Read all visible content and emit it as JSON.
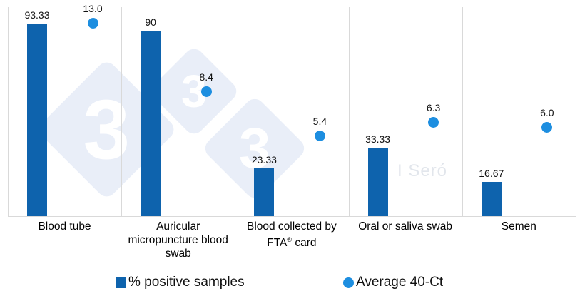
{
  "chart_data": {
    "type": "bar",
    "categories": [
      "Blood tube",
      "Auricular micropuncture blood swab",
      "Blood collected by FTA® card",
      "Oral or saliva swab",
      "Semen"
    ],
    "series": [
      {
        "name": "% positive samples",
        "render": "bar",
        "values": [
          93.33,
          90,
          23.33,
          33.33,
          16.67
        ],
        "value_labels": [
          "93.33",
          "90",
          "23.33",
          "33.33",
          "16.67"
        ],
        "color": "#0e63ad",
        "axis": {
          "min": 0,
          "max_implied": 100
        }
      },
      {
        "name": "Average 40-Ct",
        "render": "point",
        "values": [
          13.0,
          8.4,
          5.4,
          6.3,
          6.0
        ],
        "value_labels": [
          "13.0",
          "8.4",
          "5.4",
          "6.3",
          "6.0"
        ],
        "color": "#1d8ee0",
        "axis": {
          "min": 0,
          "max_implied": 14
        }
      }
    ],
    "title": "",
    "xlabel": "",
    "ylabel": "",
    "grid": "vertical-category-separators",
    "legend_position": "bottom"
  },
  "legend": {
    "items": [
      {
        "label": "% positive samples",
        "marker": "square",
        "color": "#0e63ad"
      },
      {
        "label": "Average 40-Ct",
        "marker": "circle",
        "color": "#1d8ee0"
      }
    ]
  },
  "watermark": {
    "diamond_glyph": "3",
    "signature": "I Seró"
  },
  "colors": {
    "background": "#ffffff",
    "bar": "#0e63ad",
    "dot": "#1d8ee0",
    "gridline": "#d9d9d9",
    "watermark_fill": "#e9eef8",
    "watermark_glyph": "#ffffff",
    "signature_text": "#e2e6ec",
    "label_text": "#111111"
  }
}
